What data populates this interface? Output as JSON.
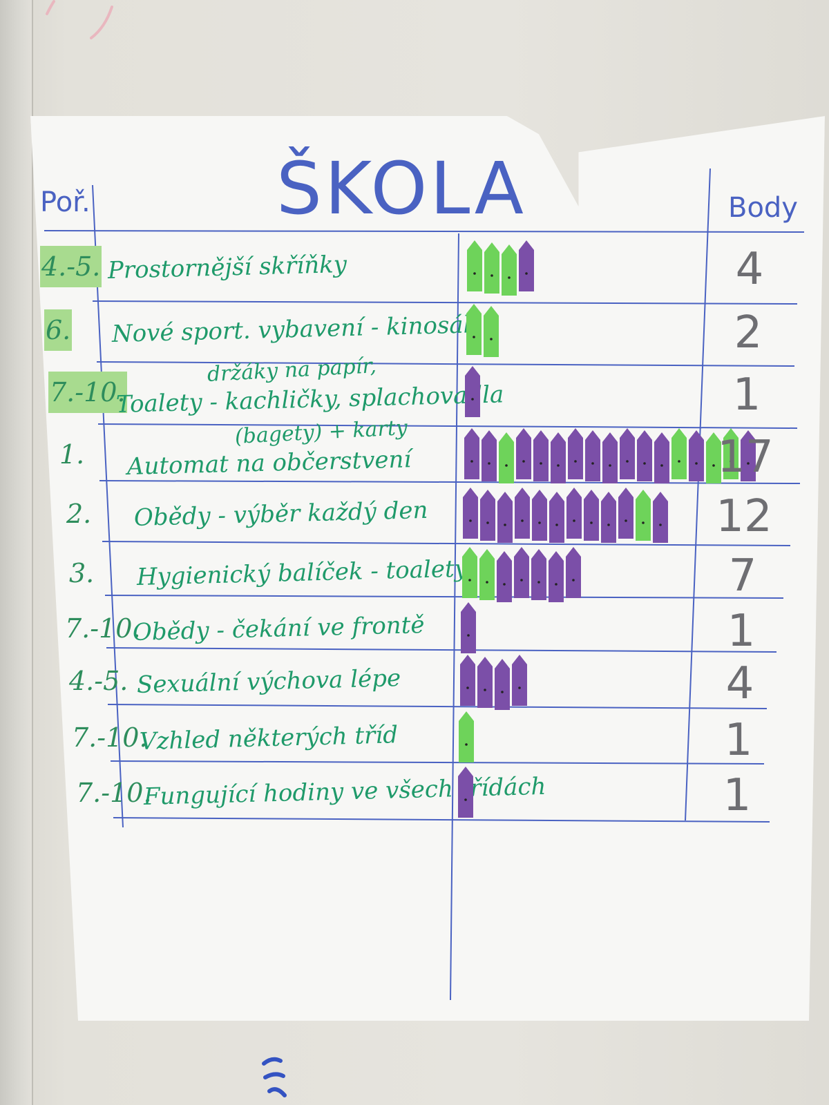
{
  "poster": {
    "title": "ŠKOLA",
    "header_order": "Poř.",
    "header_points": "Body"
  },
  "colors": {
    "ink_blue": "#4a62c2",
    "ink_green": "#1f9a6a",
    "ink_grey": "#6e6e72",
    "dot_green": "#6ed35a",
    "dot_purple": "#7b4fa8",
    "tag_green": "#a8db8f"
  },
  "rows": [
    {
      "order": "4.-5.",
      "label": "Prostornější skříňky",
      "sub": "",
      "points": "4",
      "dots": [
        "green",
        "green",
        "green",
        "purple"
      ]
    },
    {
      "order": "6.",
      "label": "Nové sport. vybavení - kinosál",
      "sub": "",
      "points": "2",
      "dots": [
        "green",
        "green"
      ]
    },
    {
      "order": "7.-10.",
      "label": "Toalety - kachličky, splachovadla",
      "sub": "držáky na papír,",
      "points": "1",
      "dots": [
        "purple"
      ]
    },
    {
      "order": "1.",
      "label": "Automat na občerstvení",
      "sub": "(bagety) + karty",
      "points": "17",
      "dots": [
        "purple",
        "purple",
        "green",
        "purple",
        "purple",
        "purple",
        "purple",
        "purple",
        "purple",
        "purple",
        "purple",
        "purple",
        "green",
        "purple",
        "green",
        "green",
        "purple"
      ]
    },
    {
      "order": "2.",
      "label": "Obědy - výběr každý den",
      "sub": "",
      "points": "12",
      "dots": [
        "purple",
        "purple",
        "purple",
        "purple",
        "purple",
        "purple",
        "purple",
        "purple",
        "purple",
        "purple",
        "green",
        "purple"
      ]
    },
    {
      "order": "3.",
      "label": "Hygienický balíček - toalety",
      "sub": "",
      "points": "7",
      "dots": [
        "green",
        "green",
        "purple",
        "purple",
        "purple",
        "purple",
        "purple"
      ]
    },
    {
      "order": "7.-10.",
      "label": "Obědy - čekání ve frontě",
      "sub": "",
      "points": "1",
      "dots": [
        "purple"
      ]
    },
    {
      "order": "4.-5.",
      "label": "Sexuální výchova lépe",
      "sub": "",
      "points": "4",
      "dots": [
        "purple",
        "purple",
        "purple",
        "purple"
      ]
    },
    {
      "order": "7.-10.",
      "label": "Vzhled některých tříd",
      "sub": "",
      "points": "1",
      "dots": [
        "green"
      ]
    },
    {
      "order": "7.-10.",
      "label": "Fungující hodiny ve všech třídách",
      "sub": "",
      "points": "1",
      "dots": [
        "purple"
      ]
    }
  ]
}
